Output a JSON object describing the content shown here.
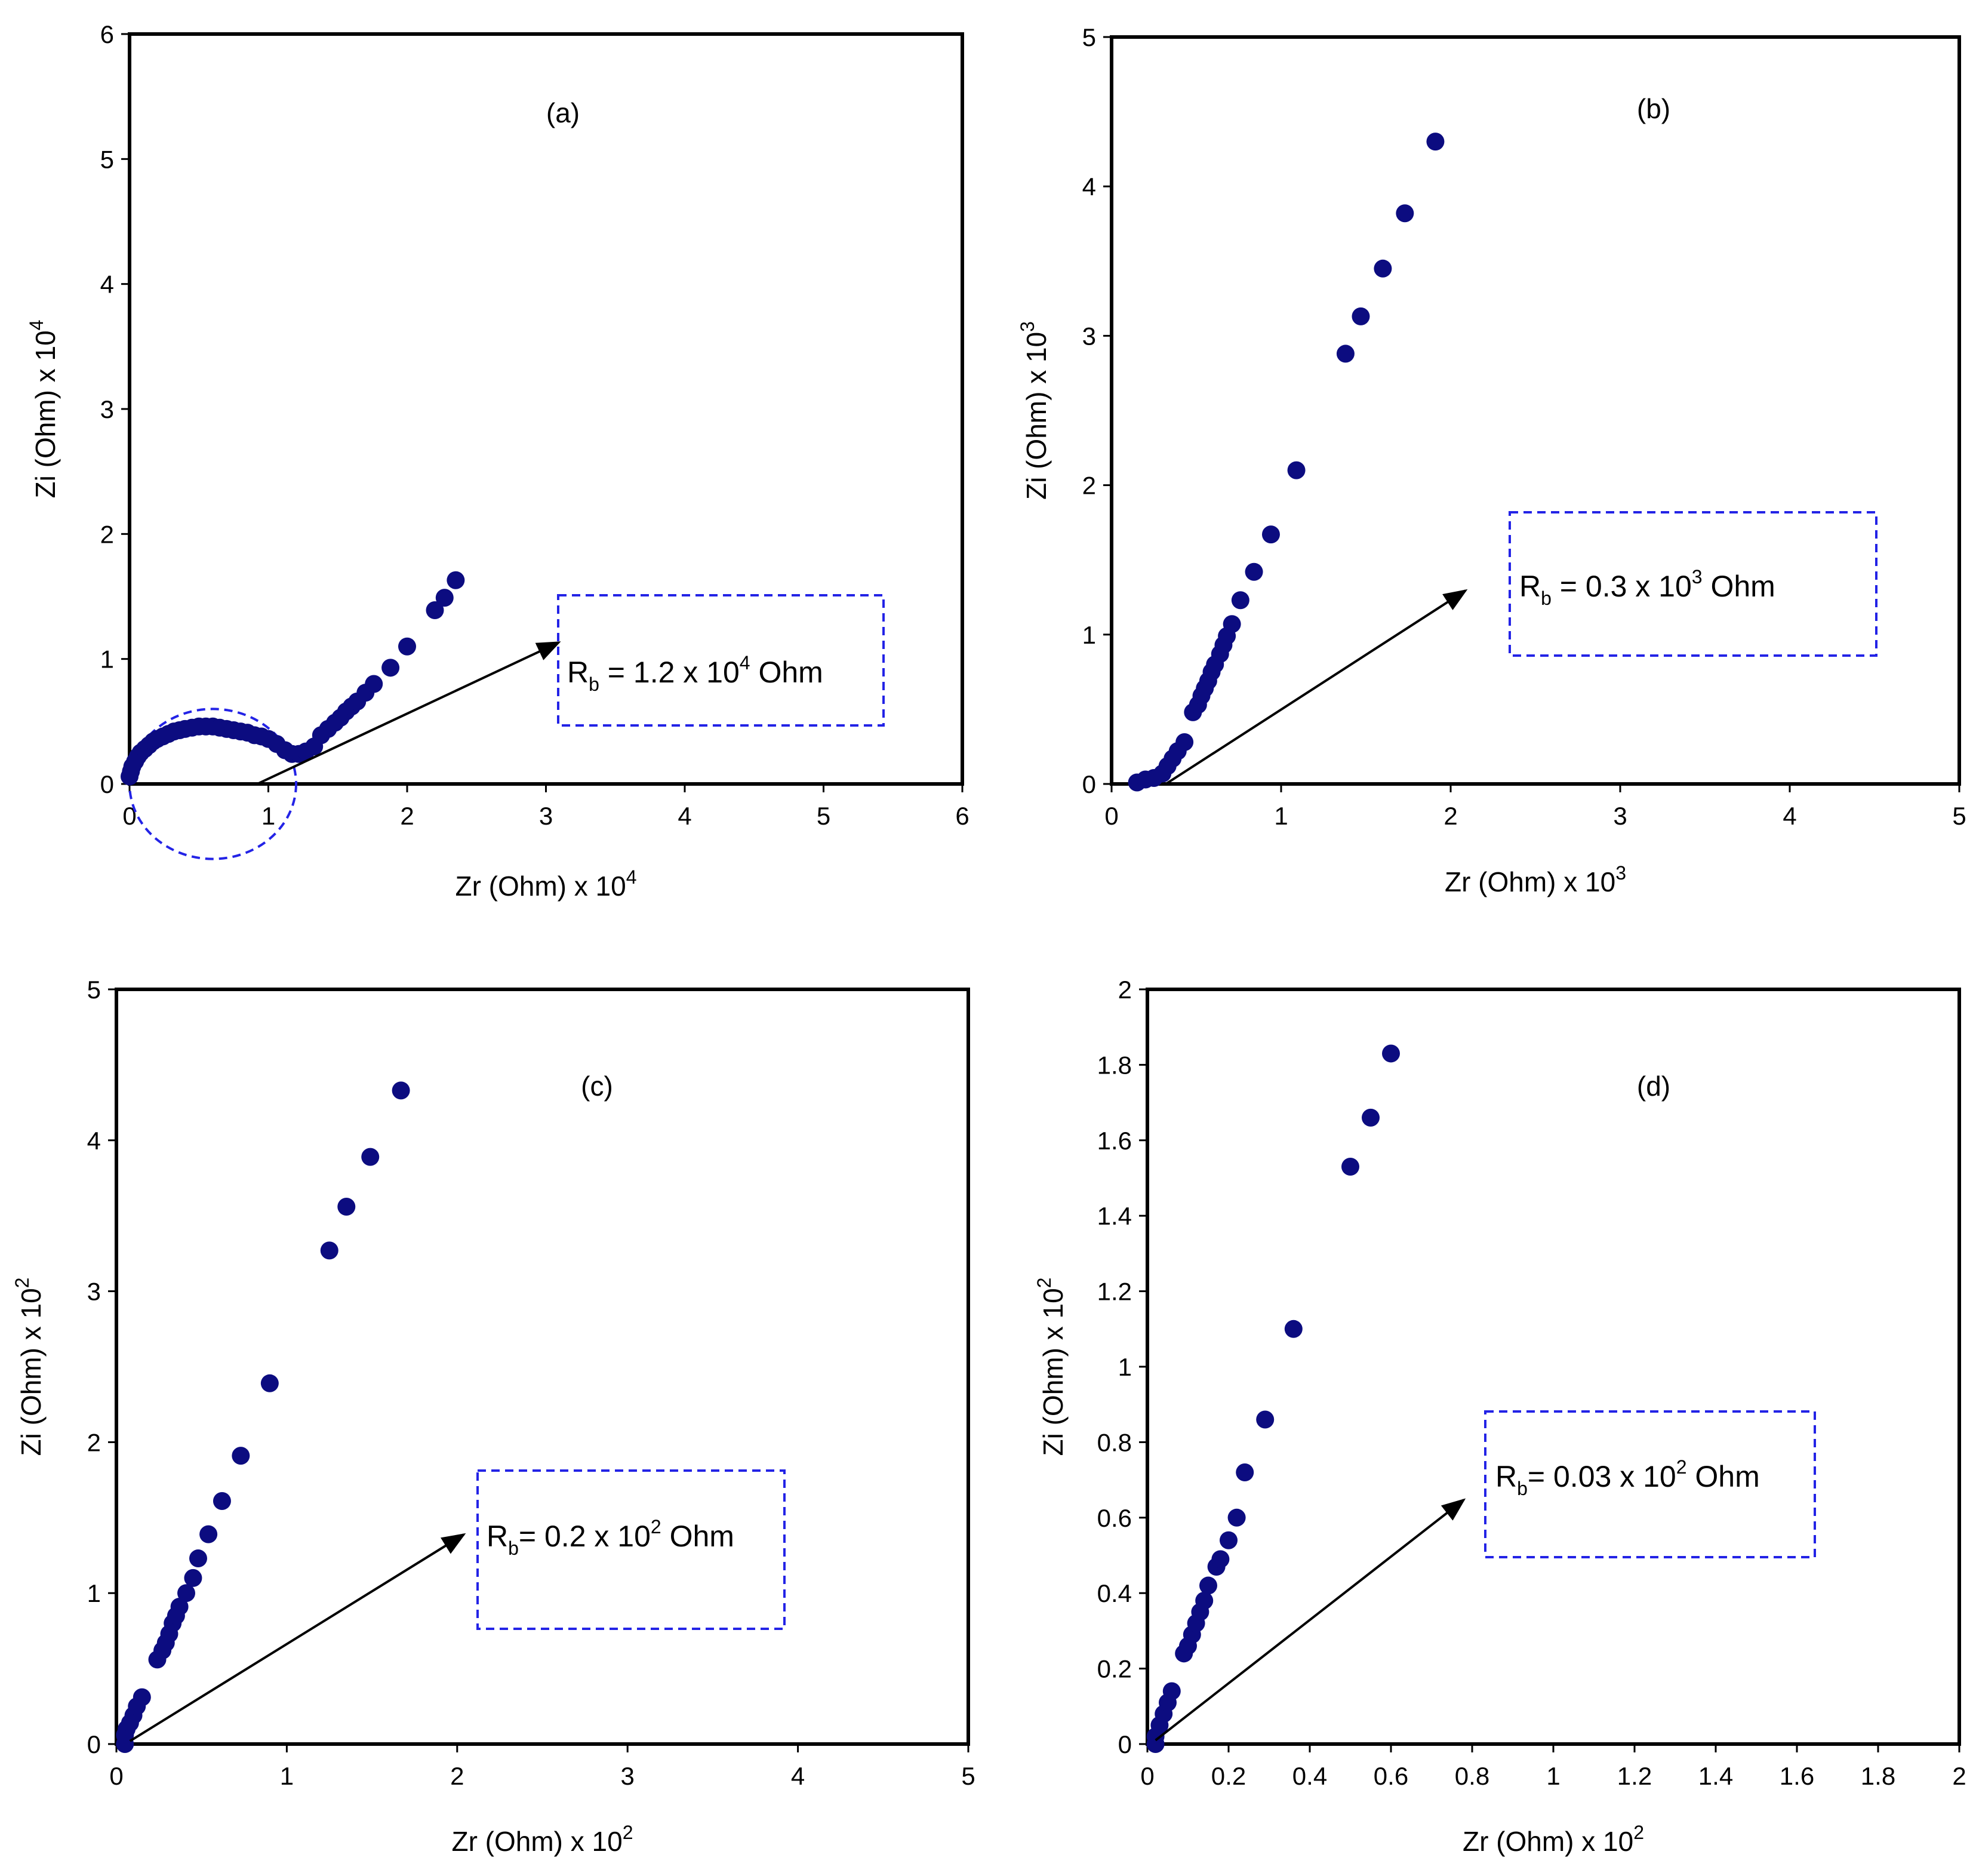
{
  "colors": {
    "marker": "#0c0c80",
    "annotation_border": "#2323e6",
    "axis": "#000000"
  },
  "chart_data": [
    {
      "type": "scatter",
      "panel": "(a)",
      "xlabel": "Zr (Ohm) x 10",
      "xlabel_exp": "4",
      "ylabel": "Zi (Ohm) x 10",
      "ylabel_exp": "4",
      "xlim": [
        0,
        6
      ],
      "ylim": [
        0,
        6
      ],
      "xticks": [
        0,
        1,
        2,
        3,
        4,
        5,
        6
      ],
      "yticks": [
        0,
        1,
        2,
        3,
        4,
        5,
        6
      ],
      "annotation": {
        "pre": "R",
        "sub": "b",
        "text": " = 1.2 x 10",
        "exp": "4",
        "unit": " Ohm"
      },
      "circle": {
        "cx": 0.6,
        "cy": 0,
        "r": 0.6
      },
      "points": [
        [
          0.0,
          0.06
        ],
        [
          0.01,
          0.1
        ],
        [
          0.02,
          0.14
        ],
        [
          0.04,
          0.18
        ],
        [
          0.06,
          0.22
        ],
        [
          0.08,
          0.25
        ],
        [
          0.11,
          0.28
        ],
        [
          0.14,
          0.31
        ],
        [
          0.17,
          0.34
        ],
        [
          0.2,
          0.36
        ],
        [
          0.24,
          0.38
        ],
        [
          0.28,
          0.4
        ],
        [
          0.32,
          0.42
        ],
        [
          0.36,
          0.43
        ],
        [
          0.4,
          0.44
        ],
        [
          0.45,
          0.45
        ],
        [
          0.5,
          0.46
        ],
        [
          0.55,
          0.46
        ],
        [
          0.6,
          0.46
        ],
        [
          0.65,
          0.45
        ],
        [
          0.7,
          0.44
        ],
        [
          0.75,
          0.43
        ],
        [
          0.8,
          0.42
        ],
        [
          0.85,
          0.41
        ],
        [
          0.9,
          0.39
        ],
        [
          0.95,
          0.38
        ],
        [
          1.0,
          0.36
        ],
        [
          1.06,
          0.32
        ],
        [
          1.12,
          0.27
        ],
        [
          1.17,
          0.24
        ],
        [
          1.22,
          0.24
        ],
        [
          1.27,
          0.26
        ],
        [
          1.33,
          0.3
        ],
        [
          1.38,
          0.39
        ],
        [
          1.43,
          0.44
        ],
        [
          1.48,
          0.49
        ],
        [
          1.52,
          0.53
        ],
        [
          1.56,
          0.58
        ],
        [
          1.6,
          0.62
        ],
        [
          1.64,
          0.66
        ],
        [
          1.7,
          0.73
        ],
        [
          1.76,
          0.8
        ],
        [
          1.88,
          0.93
        ],
        [
          2.0,
          1.1
        ],
        [
          2.2,
          1.39
        ],
        [
          2.27,
          1.49
        ],
        [
          2.35,
          1.63
        ]
      ]
    },
    {
      "type": "scatter",
      "panel": "(b)",
      "xlabel": "Zr (Ohm) x 10",
      "xlabel_exp": "3",
      "ylabel": "Zi (Ohm) x 10",
      "ylabel_exp": "3",
      "xlim": [
        0,
        5
      ],
      "ylim": [
        0,
        5
      ],
      "xticks": [
        0,
        1,
        2,
        3,
        4,
        5
      ],
      "yticks": [
        0,
        1,
        2,
        3,
        4,
        5
      ],
      "annotation": {
        "pre": "R",
        "sub": "b",
        "text": " = 0.3 x 10",
        "exp": "3",
        "unit": " Ohm"
      },
      "points": [
        [
          0.15,
          0.01
        ],
        [
          0.2,
          0.03
        ],
        [
          0.25,
          0.04
        ],
        [
          0.3,
          0.07
        ],
        [
          0.33,
          0.12
        ],
        [
          0.36,
          0.17
        ],
        [
          0.39,
          0.22
        ],
        [
          0.43,
          0.28
        ],
        [
          0.48,
          0.48
        ],
        [
          0.51,
          0.53
        ],
        [
          0.53,
          0.59
        ],
        [
          0.55,
          0.64
        ],
        [
          0.57,
          0.69
        ],
        [
          0.59,
          0.75
        ],
        [
          0.61,
          0.8
        ],
        [
          0.64,
          0.87
        ],
        [
          0.66,
          0.93
        ],
        [
          0.68,
          0.99
        ],
        [
          0.71,
          1.07
        ],
        [
          0.76,
          1.23
        ],
        [
          0.84,
          1.42
        ],
        [
          0.94,
          1.67
        ],
        [
          1.09,
          2.1
        ],
        [
          1.38,
          2.88
        ],
        [
          1.47,
          3.13
        ],
        [
          1.6,
          3.45
        ],
        [
          1.73,
          3.82
        ],
        [
          1.91,
          4.3
        ]
      ]
    },
    {
      "type": "scatter",
      "panel": "(c)",
      "xlabel": "Zr (Ohm) x 10",
      "xlabel_exp": "2",
      "ylabel": "Zi (Ohm) x 10",
      "ylabel_exp": "2",
      "xlim": [
        0,
        5
      ],
      "ylim": [
        0,
        5
      ],
      "xticks": [
        0,
        1,
        2,
        3,
        4,
        5
      ],
      "yticks": [
        0,
        1,
        2,
        3,
        4,
        5
      ],
      "annotation": {
        "pre": "R",
        "sub": "b",
        "text": "= 0.2 x 10",
        "exp": "2",
        "unit": " Ohm"
      },
      "points": [
        [
          0.05,
          0.0
        ],
        [
          0.05,
          0.06
        ],
        [
          0.06,
          0.1
        ],
        [
          0.08,
          0.14
        ],
        [
          0.1,
          0.19
        ],
        [
          0.12,
          0.25
        ],
        [
          0.15,
          0.31
        ],
        [
          0.24,
          0.56
        ],
        [
          0.27,
          0.62
        ],
        [
          0.29,
          0.67
        ],
        [
          0.31,
          0.73
        ],
        [
          0.33,
          0.8
        ],
        [
          0.35,
          0.85
        ],
        [
          0.37,
          0.91
        ],
        [
          0.41,
          1.0
        ],
        [
          0.45,
          1.1
        ],
        [
          0.48,
          1.23
        ],
        [
          0.54,
          1.39
        ],
        [
          0.62,
          1.61
        ],
        [
          0.73,
          1.91
        ],
        [
          0.9,
          2.39
        ],
        [
          1.25,
          3.27
        ],
        [
          1.35,
          3.56
        ],
        [
          1.49,
          3.89
        ],
        [
          1.67,
          4.33
        ]
      ]
    },
    {
      "type": "scatter",
      "panel": "(d)",
      "xlabel": "Zr (Ohm) x 10",
      "xlabel_exp": "2",
      "ylabel": "Zi (Ohm) x 10",
      "ylabel_exp": "2",
      "xlim": [
        0,
        2
      ],
      "ylim": [
        0,
        2
      ],
      "xticks": [
        "0",
        "0.2",
        "0.4",
        "0.6",
        "0.8",
        "1",
        "1.2",
        "1.4",
        "1.6",
        "1.8",
        "2"
      ],
      "yticks": [
        "0",
        "0.2",
        "0.4",
        "0.6",
        "0.8",
        "1",
        "1.2",
        "1.4",
        "1.6",
        "1.8",
        "2"
      ],
      "annotation": {
        "pre": "R",
        "sub": "b",
        "text": "= 0.03 x 10",
        "exp": "2",
        "unit": " Ohm"
      },
      "points": [
        [
          0.02,
          0.0
        ],
        [
          0.02,
          0.02
        ],
        [
          0.03,
          0.05
        ],
        [
          0.04,
          0.08
        ],
        [
          0.05,
          0.11
        ],
        [
          0.06,
          0.14
        ],
        [
          0.09,
          0.24
        ],
        [
          0.1,
          0.26
        ],
        [
          0.11,
          0.29
        ],
        [
          0.12,
          0.32
        ],
        [
          0.13,
          0.35
        ],
        [
          0.14,
          0.38
        ],
        [
          0.15,
          0.42
        ],
        [
          0.17,
          0.47
        ],
        [
          0.18,
          0.49
        ],
        [
          0.2,
          0.54
        ],
        [
          0.22,
          0.6
        ],
        [
          0.24,
          0.72
        ],
        [
          0.29,
          0.86
        ],
        [
          0.36,
          1.1
        ],
        [
          0.5,
          1.53
        ],
        [
          0.55,
          1.66
        ],
        [
          0.6,
          1.83
        ]
      ]
    }
  ]
}
